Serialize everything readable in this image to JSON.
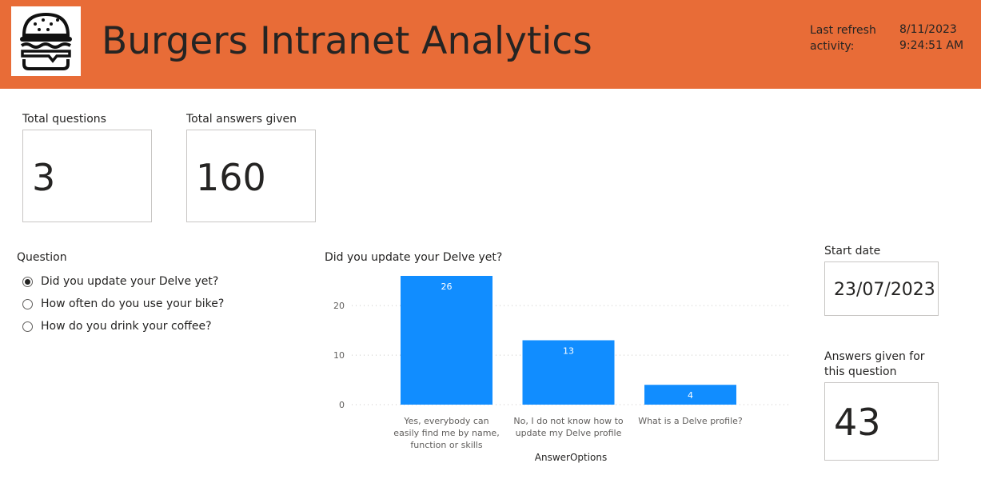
{
  "header": {
    "title": "Burgers Intranet Analytics",
    "logo_icon": "burger-icon",
    "refresh_label": "Last refresh activity:",
    "refresh_date": "8/11/2023",
    "refresh_time": "9:24:51 AM",
    "bg_color": "#E86C37"
  },
  "kpis": {
    "total_questions_label": "Total questions",
    "total_questions_value": "3",
    "total_answers_label": "Total answers given",
    "total_answers_value": "160"
  },
  "slicer": {
    "title": "Question",
    "options": [
      {
        "label": "Did you update your Delve yet?",
        "selected": true
      },
      {
        "label": "How often do you use your bike?",
        "selected": false
      },
      {
        "label": "How do you drink your coffee?",
        "selected": false
      }
    ]
  },
  "side": {
    "start_date_label": "Start date",
    "start_date_value": "23/07/2023",
    "answers_question_label": "Answers given for this question",
    "answers_question_value": "43"
  },
  "chart_data": {
    "type": "bar",
    "title": "Did you update your Delve yet?",
    "xlabel": "AnswerOptions",
    "ylabel": "",
    "categories": [
      "Yes, everybody can easily find me by name, function or skills",
      "No, I do not know how to update my Delve profile",
      "What is a Delve profile?"
    ],
    "values": [
      26,
      13,
      4
    ],
    "yticks": [
      0,
      10,
      20
    ],
    "ylim": [
      0,
      26
    ],
    "grid": true,
    "color": "#118DFF"
  }
}
